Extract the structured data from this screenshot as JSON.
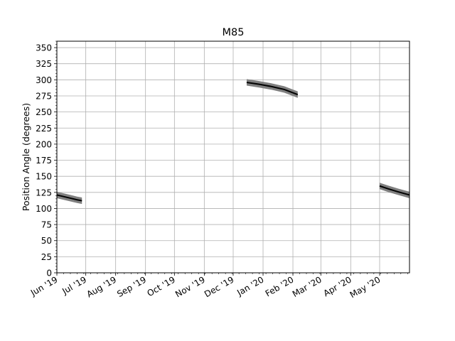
{
  "chart_data": {
    "type": "line",
    "title": "M85",
    "xlabel": "",
    "ylabel": "Position Angle (degrees)",
    "ylim": [
      0,
      360
    ],
    "xlim": [
      "2019-06-01",
      "2020-06-01"
    ],
    "yticks": [
      0,
      25,
      50,
      75,
      100,
      125,
      150,
      175,
      200,
      225,
      250,
      275,
      300,
      325,
      350
    ],
    "x_tick_dates": [
      "2019-06-01",
      "2019-07-01",
      "2019-08-01",
      "2019-09-01",
      "2019-10-01",
      "2019-11-01",
      "2019-12-01",
      "2020-01-01",
      "2020-02-01",
      "2020-03-01",
      "2020-04-01",
      "2020-05-01"
    ],
    "x_tick_labels": [
      "Jun '19",
      "Jul '19",
      "Aug '19",
      "Sep '19",
      "Oct '19",
      "Nov '19",
      "Dec '19",
      "Jan '20",
      "Feb '20",
      "Mar '20",
      "Apr '20",
      "May '20"
    ],
    "grid": true,
    "series": [
      {
        "segments": [
          [
            [
              "2019-06-01",
              121
            ],
            [
              "2019-06-08",
              118.5
            ],
            [
              "2019-06-15",
              116
            ],
            [
              "2019-06-22",
              113.5
            ],
            [
              "2019-06-27",
              112
            ]
          ],
          [
            [
              "2019-12-15",
              296
            ],
            [
              "2019-12-28",
              293
            ],
            [
              "2020-01-10",
              289.5
            ],
            [
              "2020-01-23",
              285
            ],
            [
              "2020-02-06",
              277
            ]
          ],
          [
            [
              "2020-05-01",
              135
            ],
            [
              "2020-05-10",
              130.5
            ],
            [
              "2020-05-20",
              126
            ],
            [
              "2020-06-01",
              121
            ]
          ]
        ]
      }
    ],
    "line_color": "#000000",
    "band_color": "#808080",
    "band_halfwidth": 5
  }
}
